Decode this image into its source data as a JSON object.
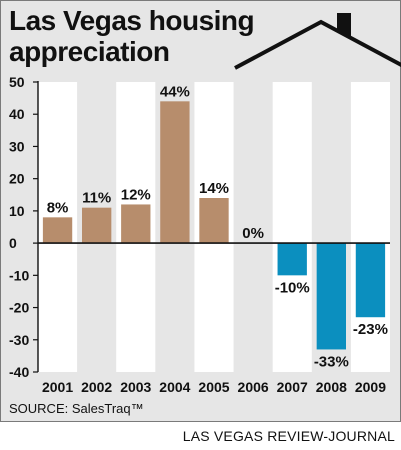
{
  "title_line1": "Las Vegas housing",
  "title_line2": "appreciation",
  "source": "SOURCE: SalesTraq™",
  "credit": "LAS VEGAS REVIEW-JOURNAL",
  "colors": {
    "positive": "#b78d6c",
    "negative": "#0b8fbf",
    "panel": "#e6e6e6",
    "stripe": "#ffffff"
  },
  "chart_data": {
    "type": "bar",
    "title": "Las Vegas housing appreciation",
    "categories": [
      "2001",
      "2002",
      "2003",
      "2004",
      "2005",
      "2006",
      "2007",
      "2008",
      "2009"
    ],
    "values": [
      8,
      11,
      12,
      44,
      14,
      0,
      -10,
      -33,
      -23
    ],
    "labels": [
      "8%",
      "11%",
      "12%",
      "44%",
      "14%",
      "0%",
      "-10%",
      "-33%",
      "-23%"
    ],
    "ylim": [
      -40,
      50
    ],
    "yticks": [
      50,
      40,
      30,
      20,
      10,
      0,
      -10,
      -20,
      -30,
      -40
    ],
    "ytick_labels": [
      "50",
      "40",
      "30",
      "20",
      "10",
      "0",
      "-10",
      "-20",
      "-30",
      "-40"
    ],
    "xlabel": "",
    "ylabel": "",
    "grid": false,
    "alternating_column_stripes": true
  }
}
